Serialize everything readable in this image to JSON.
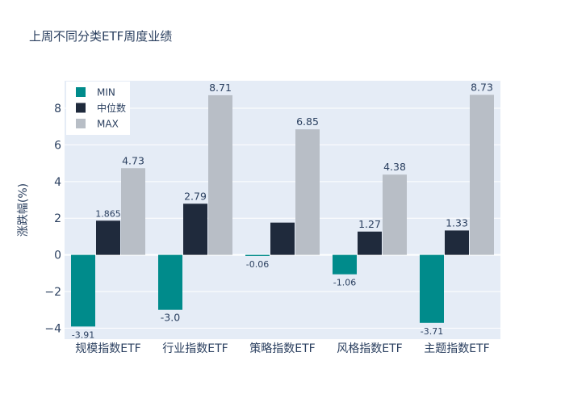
{
  "chart_data": {
    "type": "bar",
    "title": "上周不同分类ETF周度业绩",
    "ylabel": "涨跌幅(%)",
    "xlabel": "",
    "categories": [
      "规模指数ETF",
      "行业指数ETF",
      "策略指数ETF",
      "风格指数ETF",
      "主题指数ETF"
    ],
    "series": [
      {
        "name": "MIN",
        "color": "#008B8B",
        "values": [
          -3.91,
          -3.0,
          -0.06,
          -1.06,
          -3.71
        ],
        "labels": [
          "-3.91",
          "-3.0",
          "-0.06",
          "-1.06",
          "-3.71"
        ]
      },
      {
        "name": "中位数",
        "color": "#1F2A3C",
        "values": [
          1.865,
          2.79,
          1.76,
          1.27,
          1.33
        ],
        "labels": [
          "1.865",
          "2.79",
          "",
          "1.27",
          "1.33"
        ]
      },
      {
        "name": "MAX",
        "color": "#B8BEC6",
        "values": [
          4.73,
          8.71,
          6.85,
          4.38,
          8.73
        ],
        "labels": [
          "4.73",
          "8.71",
          "6.85",
          "4.38",
          "8.73"
        ]
      }
    ],
    "ylim": [
      -4.6,
      9.5
    ],
    "yticks": [
      -4,
      -2,
      0,
      2,
      4,
      6,
      8
    ],
    "ytick_labels": [
      "−4",
      "−2",
      "0",
      "2",
      "4",
      "6",
      "8"
    ],
    "grid": true,
    "legend_position": "top-left",
    "plot_background": "#E5ECF6"
  }
}
